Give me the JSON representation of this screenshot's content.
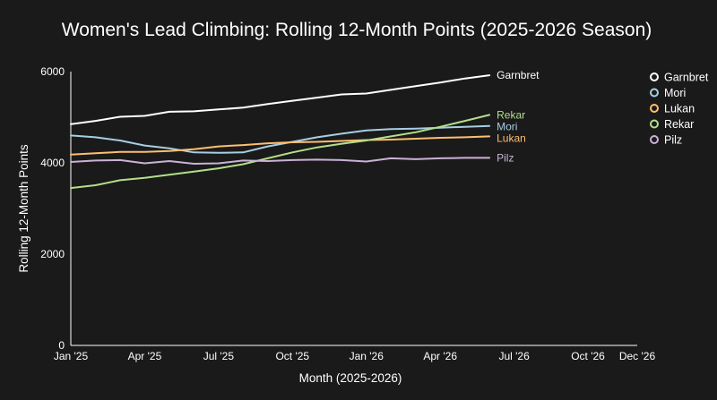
{
  "chart_data": {
    "type": "line",
    "title": "Women's Lead Climbing: Rolling 12-Month Points (2025-2026 Season)",
    "xlabel": "Month (2025-2026)",
    "ylabel": "Rolling 12-Month Points",
    "x": [
      "2025-01",
      "2025-02",
      "2025-03",
      "2025-04",
      "2025-05",
      "2025-06",
      "2025-07",
      "2025-08",
      "2025-09",
      "2025-10",
      "2025-11",
      "2025-12",
      "2026-01",
      "2026-02",
      "2026-03",
      "2026-04",
      "2026-05",
      "2026-06",
      "2026-07",
      "2026-08",
      "2026-09",
      "2026-10",
      "2026-11"
    ],
    "xlim": [
      "2025-01",
      "2026-12"
    ],
    "x_ticks": [
      "2025-01",
      "2025-04",
      "2025-07",
      "2025-10",
      "2026-01",
      "2026-04",
      "2026-07",
      "2026-10",
      "2026-12"
    ],
    "x_tick_labels": [
      "Jan '25",
      "Apr '25",
      "Jul '25",
      "Oct '25",
      "Jan '26",
      "Apr '26",
      "Jul '26",
      "Oct '26",
      "Dec '26"
    ],
    "ylim": [
      0,
      6000
    ],
    "y_ticks": [
      0,
      2000,
      4000,
      6000
    ],
    "y_tick_labels": [
      "0",
      "2000",
      "4000",
      "6000"
    ],
    "grid": false,
    "legend_position": "top-right",
    "series": [
      {
        "name": "Garnbret",
        "color": "#ffffff",
        "values": [
          4850,
          4920,
          5010,
          5030,
          5120,
          5130,
          5170,
          5210,
          5290,
          5360,
          5430,
          5500,
          5520,
          5600,
          5680,
          5760,
          5850,
          5920,
          null,
          null,
          null,
          null,
          null
        ]
      },
      {
        "name": "Mori",
        "color": "#a6cee3",
        "values": [
          4600,
          4560,
          4490,
          4380,
          4320,
          4230,
          4220,
          4230,
          4360,
          4460,
          4560,
          4640,
          4710,
          4740,
          4750,
          4770,
          4790,
          4810,
          null,
          null,
          null,
          null,
          null
        ]
      },
      {
        "name": "Lukan",
        "color": "#fdbf6f",
        "values": [
          4180,
          4210,
          4240,
          4240,
          4260,
          4300,
          4360,
          4390,
          4430,
          4450,
          4460,
          4480,
          4500,
          4510,
          4530,
          4550,
          4560,
          4580,
          null,
          null,
          null,
          null,
          null
        ]
      },
      {
        "name": "Rekar",
        "color": "#b2df8a",
        "values": [
          3450,
          3510,
          3620,
          3670,
          3740,
          3810,
          3880,
          3970,
          4100,
          4230,
          4340,
          4420,
          4490,
          4580,
          4670,
          4790,
          4920,
          5050,
          null,
          null,
          null,
          null,
          null
        ]
      },
      {
        "name": "Pilz",
        "color": "#cab2d6",
        "values": [
          4020,
          4050,
          4060,
          3990,
          4040,
          3980,
          3990,
          4050,
          4040,
          4060,
          4070,
          4060,
          4030,
          4100,
          4080,
          4100,
          4110,
          4110,
          null,
          null,
          null,
          null,
          null
        ]
      }
    ]
  }
}
